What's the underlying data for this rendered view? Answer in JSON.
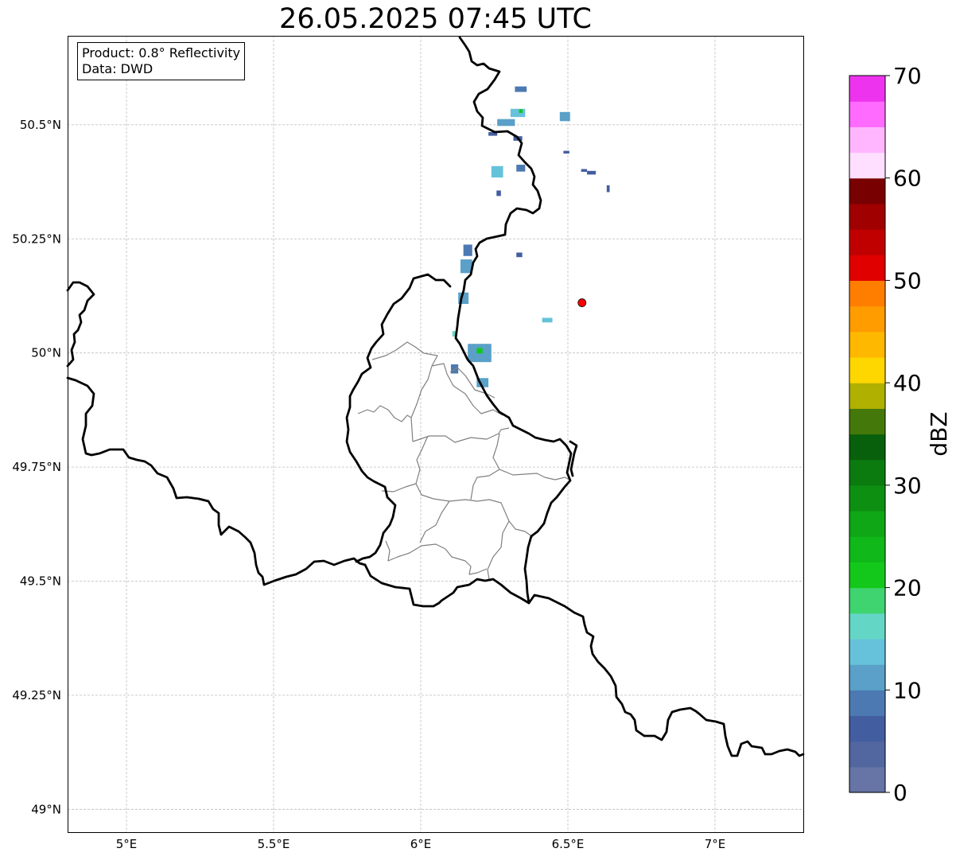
{
  "title": "26.05.2025 07:45 UTC",
  "info": {
    "product": "Product: 0.8° Reflectivity",
    "data": "Data: DWD"
  },
  "map": {
    "lon_range": [
      4.8,
      7.3
    ],
    "lat_range": [
      48.95,
      50.695
    ],
    "x_ticks": [
      {
        "value": 5.0,
        "label": "5°E"
      },
      {
        "value": 5.5,
        "label": "5.5°E"
      },
      {
        "value": 6.0,
        "label": "6°E"
      },
      {
        "value": 6.5,
        "label": "6.5°E"
      },
      {
        "value": 7.0,
        "label": "7°E"
      }
    ],
    "y_ticks": [
      {
        "value": 50.5,
        "label": "50.5°N"
      },
      {
        "value": 50.25,
        "label": "50.25°N"
      },
      {
        "value": 50.0,
        "label": "50°N"
      },
      {
        "value": 49.75,
        "label": "49.75°N"
      },
      {
        "value": 49.5,
        "label": "49.5°N"
      },
      {
        "value": 49.25,
        "label": "49.25°N"
      },
      {
        "value": 49.0,
        "label": "49°N"
      }
    ],
    "radar_site": {
      "lon": 6.548,
      "lat": 50.11,
      "color": "#ff0000"
    },
    "border_color": "#000000",
    "district_color": "#808080",
    "grid": true
  },
  "colorbar": {
    "label": "dBZ",
    "min": 0,
    "max": 70,
    "tick_values": [
      0,
      10,
      20,
      30,
      40,
      50,
      60,
      70
    ],
    "tick_labels": [
      "0",
      "10",
      "20",
      "30",
      "40",
      "50",
      "60",
      "70"
    ],
    "colors": [
      "#6674a6",
      "#5266a0",
      "#435ea0",
      "#4c79b1",
      "#5aa0c8",
      "#66c2da",
      "#64d6c6",
      "#3fd46f",
      "#13c81a",
      "#10b81a",
      "#10a716",
      "#0d8f12",
      "#0b7b10",
      "#08600d",
      "#44780a",
      "#b0b000",
      "#ffd700",
      "#ffb800",
      "#ff9c00",
      "#ff7e00",
      "#e00000",
      "#c00000",
      "#a00000",
      "#780000",
      "#ffdfff",
      "#ffb6ff",
      "#ff6bff",
      "#ee33ee"
    ]
  },
  "echoes": [
    {
      "lon": 6.34,
      "lat": 50.578,
      "w": 0.04,
      "h": 0.012,
      "dbz": 8
    },
    {
      "lon": 6.33,
      "lat": 50.526,
      "w": 0.05,
      "h": 0.018,
      "dbz": 14
    },
    {
      "lon": 6.34,
      "lat": 50.53,
      "w": 0.012,
      "h": 0.008,
      "dbz": 22
    },
    {
      "lon": 6.29,
      "lat": 50.505,
      "w": 0.06,
      "h": 0.015,
      "dbz": 10
    },
    {
      "lon": 6.49,
      "lat": 50.518,
      "w": 0.035,
      "h": 0.02,
      "dbz": 12
    },
    {
      "lon": 6.245,
      "lat": 50.48,
      "w": 0.03,
      "h": 0.008,
      "dbz": 6
    },
    {
      "lon": 6.33,
      "lat": 50.47,
      "w": 0.03,
      "h": 0.01,
      "dbz": 6
    },
    {
      "lon": 6.495,
      "lat": 50.44,
      "w": 0.02,
      "h": 0.006,
      "dbz": 6
    },
    {
      "lon": 6.26,
      "lat": 50.397,
      "w": 0.04,
      "h": 0.025,
      "dbz": 14
    },
    {
      "lon": 6.34,
      "lat": 50.405,
      "w": 0.03,
      "h": 0.015,
      "dbz": 8
    },
    {
      "lon": 6.555,
      "lat": 50.4,
      "w": 0.02,
      "h": 0.006,
      "dbz": 6
    },
    {
      "lon": 6.58,
      "lat": 50.395,
      "w": 0.03,
      "h": 0.008,
      "dbz": 6
    },
    {
      "lon": 6.637,
      "lat": 50.36,
      "w": 0.01,
      "h": 0.015,
      "dbz": 6
    },
    {
      "lon": 6.265,
      "lat": 50.35,
      "w": 0.015,
      "h": 0.012,
      "dbz": 6
    },
    {
      "lon": 6.16,
      "lat": 50.225,
      "w": 0.03,
      "h": 0.025,
      "dbz": 8
    },
    {
      "lon": 6.155,
      "lat": 50.19,
      "w": 0.04,
      "h": 0.03,
      "dbz": 10
    },
    {
      "lon": 6.335,
      "lat": 50.215,
      "w": 0.02,
      "h": 0.01,
      "dbz": 6
    },
    {
      "lon": 6.145,
      "lat": 50.12,
      "w": 0.035,
      "h": 0.025,
      "dbz": 10
    },
    {
      "lon": 6.43,
      "lat": 50.072,
      "w": 0.035,
      "h": 0.01,
      "dbz": 14
    },
    {
      "lon": 6.115,
      "lat": 50.042,
      "w": 0.015,
      "h": 0.012,
      "dbz": 16
    },
    {
      "lon": 6.2,
      "lat": 50.0,
      "w": 0.08,
      "h": 0.04,
      "dbz": 12
    },
    {
      "lon": 6.2,
      "lat": 50.005,
      "w": 0.02,
      "h": 0.012,
      "dbz": 20
    },
    {
      "lon": 6.115,
      "lat": 49.965,
      "w": 0.025,
      "h": 0.02,
      "dbz": 8
    },
    {
      "lon": 6.21,
      "lat": 49.935,
      "w": 0.04,
      "h": 0.02,
      "dbz": 10
    }
  ]
}
